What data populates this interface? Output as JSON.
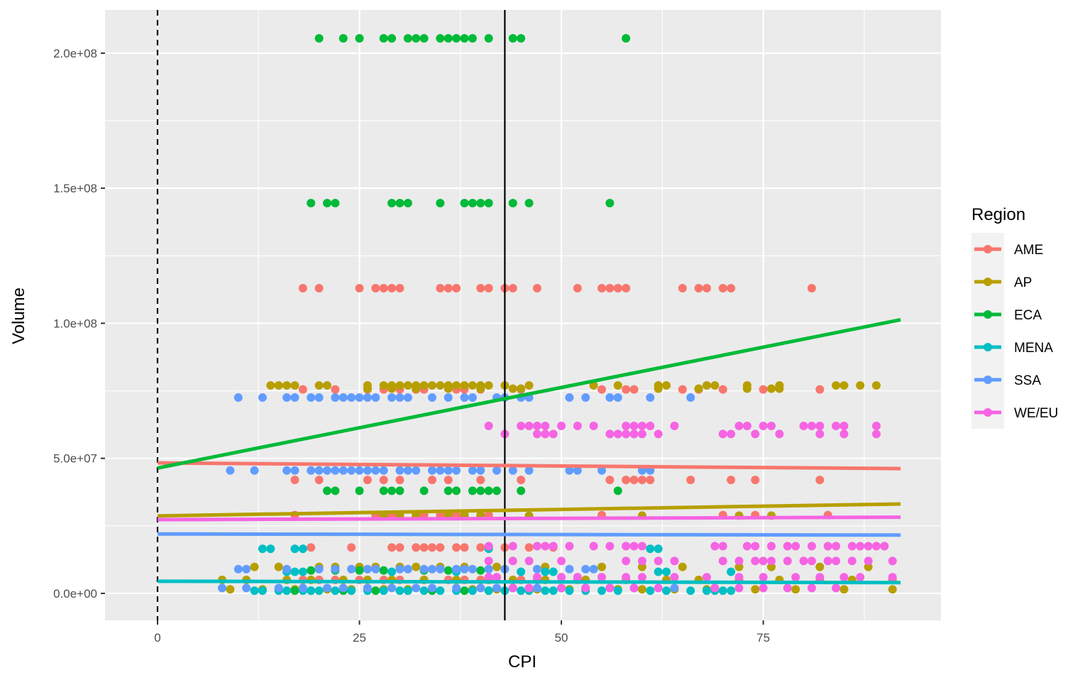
{
  "chart_data": {
    "type": "scatter",
    "xlabel": "CPI",
    "ylabel": "Volume",
    "xlim": [
      -6.5,
      97
    ],
    "ylim": [
      -10000000,
      216000000
    ],
    "x_ticks": [
      0,
      25,
      50,
      75
    ],
    "x_tick_labels": [
      "0",
      "25",
      "50",
      "75"
    ],
    "y_ticks": [
      0,
      50000000,
      100000000,
      150000000,
      200000000
    ],
    "y_tick_labels": [
      "0.0e+00",
      "5.0e+07",
      "1.0e+08",
      "1.5e+08",
      "2.0e+08"
    ],
    "grid": true,
    "legend": {
      "title": "Region",
      "position": "right",
      "entries": [
        "AME",
        "AP",
        "ECA",
        "MENA",
        "SSA",
        "WE/EU"
      ]
    },
    "reference_lines": [
      {
        "orientation": "vertical",
        "x": 0,
        "style": "dashed",
        "color": "#000000"
      },
      {
        "orientation": "vertical",
        "x": 43,
        "style": "solid",
        "color": "#000000"
      }
    ],
    "series": [
      {
        "name": "AME",
        "color": "#F8766D",
        "fit": {
          "x": [
            0,
            92
          ],
          "y": [
            48300000,
            46200000
          ]
        },
        "points": {
          "113000000": [
            18,
            20,
            25,
            27,
            28,
            29,
            30,
            35,
            36,
            37,
            40,
            41,
            43,
            44,
            47,
            52,
            55,
            56,
            57,
            58,
            65,
            67,
            68,
            70,
            71,
            81
          ],
          "75500000": [
            18,
            22,
            26,
            28,
            30,
            32,
            33,
            37,
            38,
            40,
            45,
            55,
            58,
            59,
            65,
            67,
            70,
            75,
            82
          ],
          "42000000": [
            17,
            20,
            26,
            28,
            30,
            34,
            36,
            40,
            45,
            56,
            58,
            59,
            60,
            61,
            66,
            71,
            74,
            82
          ],
          "29000000": [
            17,
            27,
            28,
            29,
            30,
            32,
            33,
            35,
            36,
            37,
            38,
            40,
            41,
            55,
            70,
            74,
            83
          ],
          "17000000": [
            19,
            24,
            29,
            30,
            32,
            33,
            34,
            35,
            37,
            38,
            40,
            41,
            43,
            46,
            49
          ],
          "5000000": [
            18,
            20,
            22,
            25,
            28,
            30,
            33,
            36,
            38,
            40,
            45,
            47,
            52
          ]
        }
      },
      {
        "name": "AP",
        "color": "#B79F00",
        "fit": {
          "x": [
            0,
            92
          ],
          "y": [
            28700000,
            33100000
          ]
        },
        "points": {
          "77000000": [
            14,
            15,
            16,
            17,
            20,
            21,
            26,
            28,
            29,
            30,
            31,
            32,
            33,
            34,
            35,
            36,
            37,
            38,
            39,
            40,
            41,
            43,
            46,
            54,
            57,
            62,
            63,
            68,
            69,
            73,
            77,
            84,
            85,
            87,
            89
          ],
          "75800000": [
            26,
            29,
            32,
            36,
            40,
            44,
            45,
            62,
            67,
            73,
            76,
            77
          ],
          "28800000": [
            28,
            30,
            32,
            36,
            38,
            40,
            46,
            60,
            72,
            76
          ],
          "9800000": [
            12,
            15,
            20,
            22,
            25,
            27,
            30,
            32,
            35,
            38,
            42,
            48,
            55,
            60,
            65,
            72,
            76,
            82,
            88
          ],
          "5000000": [
            8,
            11,
            16,
            19,
            23,
            26,
            29,
            33,
            37,
            41,
            44,
            48,
            53,
            58,
            63,
            67,
            72,
            77,
            82,
            86,
            91
          ],
          "1500000": [
            9,
            13,
            17,
            21,
            24,
            28,
            31,
            34,
            39,
            42,
            47,
            51,
            57,
            60,
            64,
            68,
            74,
            79,
            85,
            91
          ]
        }
      },
      {
        "name": "ECA",
        "color": "#00BA38",
        "fit": {
          "x": [
            0,
            92
          ],
          "y": [
            46400000,
            101300000
          ]
        },
        "points": {
          "205500000": [
            20,
            23,
            25,
            28,
            29,
            31,
            32,
            33,
            35,
            36,
            37,
            38,
            39,
            41,
            44,
            45,
            58
          ],
          "144500000": [
            19,
            21,
            22,
            29,
            30,
            31,
            35,
            38,
            39,
            40,
            41,
            44,
            46,
            56
          ],
          "38000000": [
            21,
            22,
            25,
            28,
            29,
            30,
            33,
            36,
            37,
            39,
            40,
            41,
            42,
            45,
            57
          ],
          "8500000": [
            19,
            22,
            25,
            28,
            33,
            36,
            40
          ],
          "1000000": [
            17,
            19,
            23,
            27,
            31,
            34,
            38,
            41
          ]
        }
      },
      {
        "name": "MENA",
        "color": "#00BFC4",
        "fit": {
          "x": [
            0,
            92
          ],
          "y": [
            4500000,
            4000000
          ]
        },
        "points": {
          "16500000": [
            13,
            14,
            17,
            18,
            41,
            61,
            62
          ],
          "8000000": [
            16,
            17,
            18,
            29,
            37,
            45,
            48,
            49,
            62,
            63,
            71
          ],
          "1000000": [
            12,
            13,
            15,
            16,
            18,
            19,
            20,
            22,
            24,
            26,
            28,
            30,
            31,
            33,
            35,
            37,
            39,
            41,
            43,
            45,
            46,
            48,
            49,
            51,
            53,
            55,
            57,
            61,
            63,
            66,
            68,
            69,
            70,
            71
          ]
        }
      },
      {
        "name": "SSA",
        "color": "#619CFF",
        "fit": {
          "x": [
            0,
            92
          ],
          "y": [
            22000000,
            21600000
          ]
        },
        "points": {
          "72500000": [
            10,
            13,
            16,
            17,
            19,
            20,
            22,
            23,
            24,
            25,
            26,
            27,
            29,
            30,
            31,
            34,
            36,
            38,
            39,
            42,
            43,
            45,
            46,
            51,
            53,
            56,
            57,
            61,
            66
          ],
          "45500000": [
            9,
            12,
            16,
            17,
            19,
            20,
            21,
            22,
            23,
            24,
            25,
            26,
            27,
            28,
            30,
            31,
            32,
            34,
            35,
            36,
            37,
            39,
            40,
            42,
            44,
            46,
            51,
            52,
            55,
            60,
            61
          ],
          "9000000": [
            10,
            11,
            16,
            20,
            22,
            24,
            26,
            27,
            30,
            31,
            33,
            34,
            35,
            37,
            38,
            39,
            41,
            43,
            47,
            51,
            53,
            54
          ],
          "2000000": [
            8,
            11,
            15,
            18,
            21,
            23,
            26,
            29,
            32,
            34,
            37,
            40,
            42,
            44,
            47,
            50,
            53,
            56,
            59,
            64
          ]
        }
      },
      {
        "name": "WE/EU",
        "color": "#F564E3",
        "fit": {
          "x": [
            0,
            92
          ],
          "y": [
            27300000,
            28200000
          ]
        },
        "points": {
          "62000000": [
            41,
            45,
            46,
            47,
            48,
            50,
            52,
            54,
            58,
            59,
            60,
            61,
            64,
            72,
            73,
            75,
            76,
            80,
            81,
            82,
            84,
            85,
            89
          ],
          "59000000": [
            43,
            47,
            48,
            49,
            56,
            57,
            58,
            59,
            60,
            62,
            70,
            71,
            74,
            77,
            82,
            85,
            89
          ],
          "17500000": [
            41,
            44,
            47,
            48,
            49,
            51,
            54,
            56,
            58,
            59,
            60,
            69,
            70,
            73,
            74,
            76,
            78,
            79,
            81,
            83,
            84,
            86,
            87,
            88,
            89,
            90
          ],
          "12000000": [
            41,
            44,
            46,
            50,
            58,
            60,
            62,
            64,
            70,
            72,
            74,
            75,
            76,
            78,
            80,
            81,
            83,
            84,
            86,
            88,
            91
          ],
          "6000000": [
            41,
            42,
            47,
            50,
            52,
            55,
            58,
            60,
            64,
            68,
            72,
            75,
            79,
            82,
            85,
            87,
            91
          ],
          "2000000": [
            44,
            46,
            50,
            53,
            56,
            59,
            62,
            69,
            72,
            75,
            78,
            81,
            84
          ]
        }
      }
    ]
  }
}
